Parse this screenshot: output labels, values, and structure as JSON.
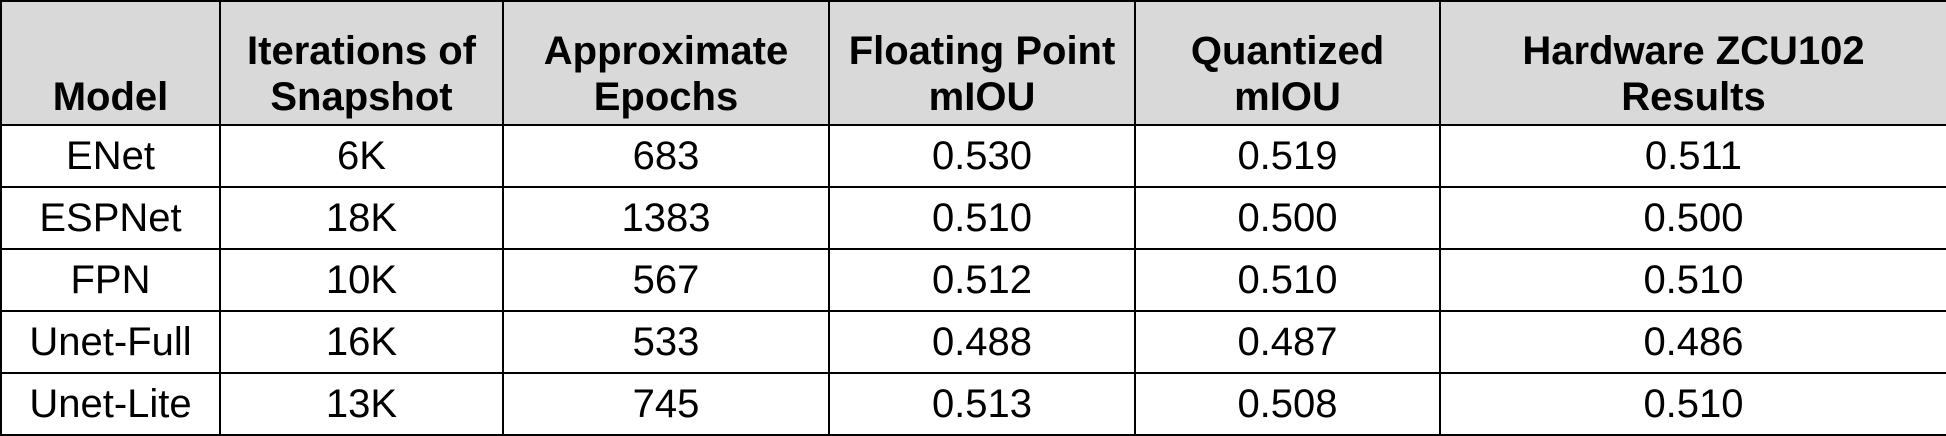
{
  "chart_data": {
    "type": "table",
    "columns": [
      [
        "",
        "Model"
      ],
      [
        "Iterations of",
        "Snapshot"
      ],
      [
        "Approximate",
        "Epochs"
      ],
      [
        "Floating Point",
        "mIOU"
      ],
      [
        "Quantized",
        "mIOU"
      ],
      [
        "Hardware ZCU102",
        "Results"
      ]
    ],
    "rows": [
      [
        "ENet",
        "6K",
        "683",
        "0.530",
        "0.519",
        "0.511"
      ],
      [
        "ESPNet",
        "18K",
        "1383",
        "0.510",
        "0.500",
        "0.500"
      ],
      [
        "FPN",
        "10K",
        "567",
        "0.512",
        "0.510",
        "0.510"
      ],
      [
        "Unet-Full",
        "16K",
        "533",
        "0.488",
        "0.487",
        "0.486"
      ],
      [
        "Unet-Lite",
        "13K",
        "745",
        "0.513",
        "0.508",
        "0.510"
      ]
    ],
    "colors": {
      "header_background": "#d9d9d9",
      "body_background": "#ffffff",
      "border": "#000000",
      "text": "#000000"
    }
  }
}
